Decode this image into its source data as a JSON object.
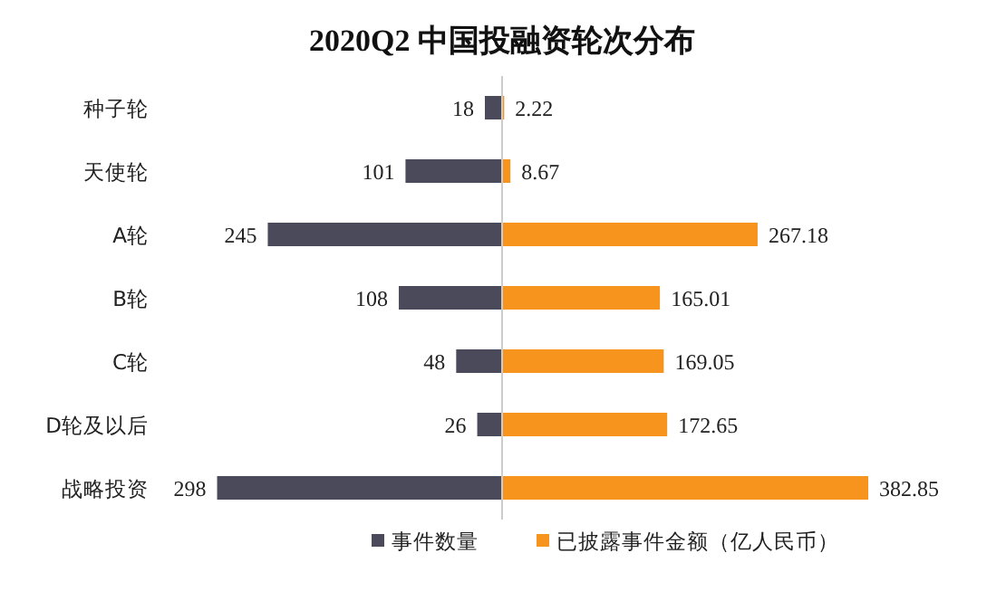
{
  "chart_data": [
    {
      "type": "bar",
      "orientation": "horizontal",
      "title": "2020Q2 中国投融资轮次分布",
      "categories": [
        "种子轮",
        "天使轮",
        "A轮",
        "B轮",
        "C轮",
        "D轮及以后",
        "战略投资"
      ],
      "series": [
        {
          "name": "事件数量",
          "color": "#4a4a5a",
          "values": [
            18,
            101,
            245,
            108,
            48,
            26,
            298
          ]
        }
      ],
      "data_labels": true,
      "legend": "bottom"
    },
    {
      "type": "bar",
      "orientation": "horizontal",
      "categories": [
        null,
        null,
        null,
        null,
        null,
        null,
        null
      ],
      "series": [
        {
          "name": "已披露事件金额（亿人民币）",
          "color": "#f7941d",
          "values": [
            2.22,
            8.67,
            267.18,
            165.01,
            169.05,
            172.65,
            382.85
          ]
        }
      ],
      "data_labels": true,
      "legend": "bottom"
    }
  ]
}
